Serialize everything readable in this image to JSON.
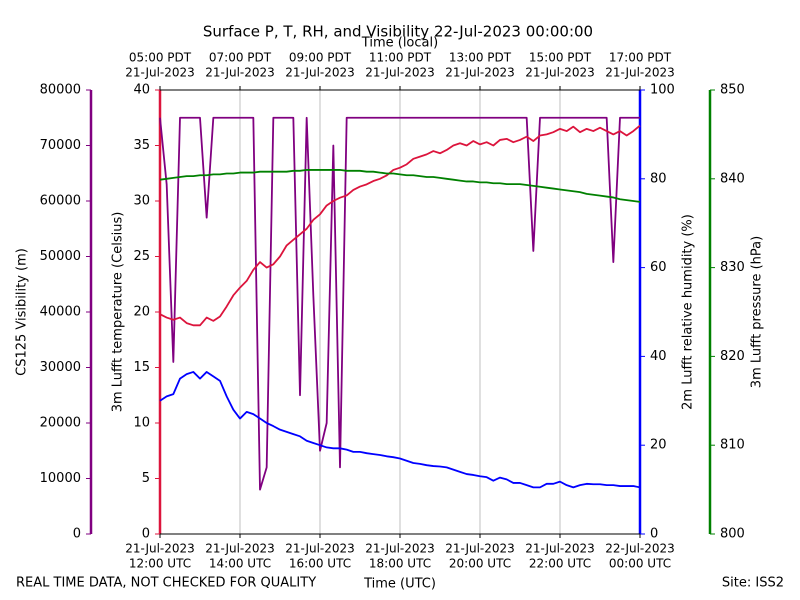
{
  "chart_data": {
    "type": "line",
    "title": "Surface P, T, RH, and Visibility 22-Jul-2023 00:00:00",
    "xlabel": "Time (UTC)",
    "x2label": "Time (local)",
    "footer_left": "REAL TIME DATA, NOT CHECKED FOR QUALITY",
    "footer_right": "Site: ISS2",
    "grid": true,
    "xlim": [
      "2023-07-21 12:00",
      "2023-07-22 00:00"
    ],
    "xticks": [
      {
        "value": "2023-07-21 12:00",
        "label": [
          "21-Jul-2023",
          "12:00 UTC"
        ]
      },
      {
        "value": "2023-07-21 14:00",
        "label": [
          "21-Jul-2023",
          "14:00 UTC"
        ]
      },
      {
        "value": "2023-07-21 16:00",
        "label": [
          "21-Jul-2023",
          "16:00 UTC"
        ]
      },
      {
        "value": "2023-07-21 18:00",
        "label": [
          "21-Jul-2023",
          "18:00 UTC"
        ]
      },
      {
        "value": "2023-07-21 20:00",
        "label": [
          "21-Jul-2023",
          "20:00 UTC"
        ]
      },
      {
        "value": "2023-07-21 22:00",
        "label": [
          "21-Jul-2023",
          "22:00 UTC"
        ]
      },
      {
        "value": "2023-07-22 00:00",
        "label": [
          "22-Jul-2023",
          "00:00 UTC"
        ]
      }
    ],
    "x2ticks": [
      {
        "value": "2023-07-21 12:00",
        "label": [
          "05:00 PDT",
          "21-Jul-2023"
        ]
      },
      {
        "value": "2023-07-21 14:00",
        "label": [
          "07:00 PDT",
          "21-Jul-2023"
        ]
      },
      {
        "value": "2023-07-21 16:00",
        "label": [
          "09:00 PDT",
          "21-Jul-2023"
        ]
      },
      {
        "value": "2023-07-21 18:00",
        "label": [
          "11:00 PDT",
          "21-Jul-2023"
        ]
      },
      {
        "value": "2023-07-21 20:00",
        "label": [
          "13:00 PDT",
          "21-Jul-2023"
        ]
      },
      {
        "value": "2023-07-21 22:00",
        "label": [
          "15:00 PDT",
          "21-Jul-2023"
        ]
      },
      {
        "value": "2023-07-22 00:00",
        "label": [
          "17:00 PDT",
          "21-Jul-2023"
        ]
      }
    ],
    "axes": [
      {
        "label": "CS125 Visibility (m)",
        "color": "#800080",
        "lim": [
          0,
          80000
        ],
        "ticks": [
          0,
          10000,
          20000,
          30000,
          40000,
          50000,
          60000,
          70000,
          80000
        ]
      },
      {
        "label": "3m Lufft temperature (Celsius)",
        "color": "#dc143c",
        "lim": [
          0,
          40
        ],
        "ticks": [
          0,
          5,
          10,
          15,
          20,
          25,
          30,
          35,
          40
        ]
      },
      {
        "label": "2m Lufft relative humidity (%)",
        "color": "#0000ff",
        "lim": [
          0,
          100
        ],
        "ticks": [
          0,
          20,
          40,
          60,
          80,
          100
        ]
      },
      {
        "label": "3m Lufft pressure (hPa)",
        "color": "#008000",
        "lim": [
          800,
          850
        ],
        "ticks": [
          800,
          810,
          820,
          830,
          840,
          850
        ]
      }
    ],
    "x": [
      "2023-07-21 12:00",
      "2023-07-21 12:10",
      "2023-07-21 12:20",
      "2023-07-21 12:30",
      "2023-07-21 12:40",
      "2023-07-21 12:50",
      "2023-07-21 13:00",
      "2023-07-21 13:10",
      "2023-07-21 13:20",
      "2023-07-21 13:30",
      "2023-07-21 13:40",
      "2023-07-21 13:50",
      "2023-07-21 14:00",
      "2023-07-21 14:10",
      "2023-07-21 14:20",
      "2023-07-21 14:30",
      "2023-07-21 14:40",
      "2023-07-21 14:50",
      "2023-07-21 15:00",
      "2023-07-21 15:10",
      "2023-07-21 15:20",
      "2023-07-21 15:30",
      "2023-07-21 15:40",
      "2023-07-21 15:50",
      "2023-07-21 16:00",
      "2023-07-21 16:10",
      "2023-07-21 16:20",
      "2023-07-21 16:30",
      "2023-07-21 16:40",
      "2023-07-21 16:50",
      "2023-07-21 17:00",
      "2023-07-21 17:10",
      "2023-07-21 17:20",
      "2023-07-21 17:30",
      "2023-07-21 17:40",
      "2023-07-21 17:50",
      "2023-07-21 18:00",
      "2023-07-21 18:10",
      "2023-07-21 18:20",
      "2023-07-21 18:30",
      "2023-07-21 18:40",
      "2023-07-21 18:50",
      "2023-07-21 19:00",
      "2023-07-21 19:10",
      "2023-07-21 19:20",
      "2023-07-21 19:30",
      "2023-07-21 19:40",
      "2023-07-21 19:50",
      "2023-07-21 20:00",
      "2023-07-21 20:10",
      "2023-07-21 20:20",
      "2023-07-21 20:30",
      "2023-07-21 20:40",
      "2023-07-21 20:50",
      "2023-07-21 21:00",
      "2023-07-21 21:10",
      "2023-07-21 21:20",
      "2023-07-21 21:30",
      "2023-07-21 21:40",
      "2023-07-21 21:50",
      "2023-07-21 22:00",
      "2023-07-21 22:10",
      "2023-07-21 22:20",
      "2023-07-21 22:30",
      "2023-07-21 22:40",
      "2023-07-21 22:50",
      "2023-07-21 23:00",
      "2023-07-21 23:10",
      "2023-07-21 23:20",
      "2023-07-21 23:30",
      "2023-07-21 23:40",
      "2023-07-21 23:50",
      "2023-07-22 00:00"
    ],
    "series": [
      {
        "axis": 0,
        "color": "#800080",
        "values": [
          75000,
          63000,
          31000,
          75000,
          75000,
          75000,
          75000,
          57000,
          75000,
          75000,
          75000,
          75000,
          75000,
          75000,
          75000,
          8000,
          12000,
          75000,
          75000,
          75000,
          75000,
          25000,
          75000,
          43000,
          15000,
          20000,
          70000,
          12000,
          75000,
          75000,
          75000,
          75000,
          75000,
          75000,
          75000,
          75000,
          75000,
          75000,
          75000,
          75000,
          75000,
          75000,
          75000,
          75000,
          75000,
          75000,
          75000,
          75000,
          75000,
          75000,
          75000,
          75000,
          75000,
          75000,
          75000,
          75000,
          51000,
          75000,
          75000,
          75000,
          75000,
          75000,
          75000,
          75000,
          75000,
          75000,
          75000,
          75000,
          49000,
          75000,
          75000,
          75000,
          75000
        ]
      },
      {
        "axis": 1,
        "color": "#dc143c",
        "values": [
          19.8,
          19.5,
          19.3,
          19.5,
          19.0,
          18.8,
          18.8,
          19.5,
          19.2,
          19.6,
          20.5,
          21.5,
          22.2,
          22.8,
          23.8,
          24.5,
          24.0,
          24.3,
          25.0,
          26.0,
          26.5,
          27.0,
          27.5,
          28.3,
          28.8,
          29.6,
          30.0,
          30.3,
          30.5,
          31.0,
          31.3,
          31.5,
          31.8,
          32.0,
          32.3,
          32.8,
          33.0,
          33.3,
          33.8,
          34.0,
          34.2,
          34.5,
          34.3,
          34.6,
          35.0,
          35.2,
          35.0,
          35.4,
          35.1,
          35.3,
          35.0,
          35.5,
          35.6,
          35.3,
          35.5,
          35.8,
          35.4,
          35.9,
          36.0,
          36.2,
          36.5,
          36.3,
          36.7,
          36.2,
          36.5,
          36.3,
          36.6,
          36.3,
          36.0,
          36.3,
          35.9,
          36.3,
          36.8
        ]
      },
      {
        "axis": 3,
        "color": "#008000",
        "values": [
          839.9,
          840.0,
          840.1,
          840.2,
          840.3,
          840.3,
          840.4,
          840.4,
          840.5,
          840.5,
          840.6,
          840.6,
          840.7,
          840.7,
          840.7,
          840.8,
          840.8,
          840.8,
          840.8,
          840.8,
          840.9,
          840.9,
          841.0,
          841.0,
          841.0,
          841.0,
          841.0,
          841.0,
          840.9,
          840.9,
          840.9,
          840.8,
          840.8,
          840.7,
          840.6,
          840.6,
          840.5,
          840.4,
          840.4,
          840.3,
          840.2,
          840.2,
          840.1,
          840.0,
          839.9,
          839.8,
          839.7,
          839.7,
          839.6,
          839.6,
          839.5,
          839.5,
          839.4,
          839.4,
          839.4,
          839.3,
          839.2,
          839.1,
          839.0,
          838.9,
          838.8,
          838.7,
          838.6,
          838.5,
          838.3,
          838.2,
          838.1,
          838.0,
          837.9,
          837.7,
          837.6,
          837.5,
          837.4
        ]
      },
      {
        "axis": 2,
        "color": "#0000ff",
        "values": [
          30,
          31,
          31.5,
          35,
          36,
          36.5,
          35,
          36.5,
          35.5,
          34.5,
          31,
          28,
          26,
          27.5,
          27,
          26,
          25,
          24.3,
          23.5,
          23,
          22.5,
          22,
          21,
          20.5,
          20,
          19.5,
          19.3,
          19.3,
          19,
          18.5,
          18.5,
          18.2,
          18,
          17.8,
          17.5,
          17.3,
          17,
          16.5,
          16,
          15.8,
          15.5,
          15.3,
          15.2,
          15,
          14.5,
          14,
          13.5,
          13.3,
          13,
          12.8,
          12,
          12.7,
          12.3,
          11.5,
          11.5,
          11,
          10.5,
          10.5,
          11.3,
          11.3,
          11.8,
          11,
          10.5,
          11,
          11.3,
          11.2,
          11.2,
          11,
          11,
          10.8,
          10.8,
          10.8,
          10.5
        ]
      }
    ]
  }
}
